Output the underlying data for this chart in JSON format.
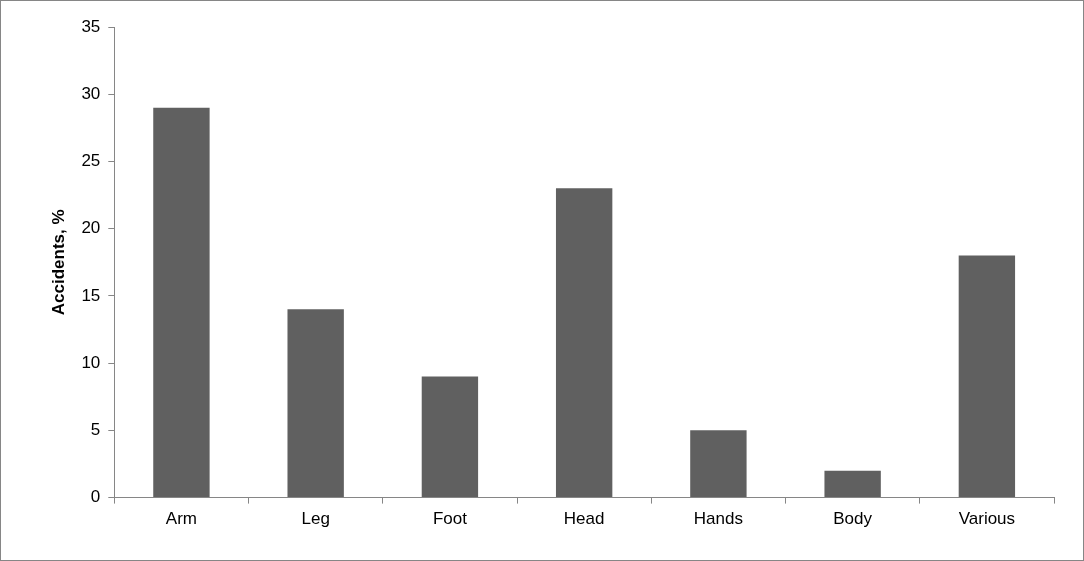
{
  "chart_data": {
    "type": "bar",
    "ylabel": "Accidents, %",
    "categories": [
      "Arm",
      "Leg",
      "Foot",
      "Head",
      "Hands",
      "Body",
      "Various"
    ],
    "values": [
      29,
      14,
      9,
      23,
      5,
      2,
      18
    ],
    "color": "#606060",
    "ylim": [
      0,
      35
    ],
    "yticks": [
      0,
      5,
      10,
      15,
      20,
      25,
      30,
      35
    ],
    "legend": false
  }
}
